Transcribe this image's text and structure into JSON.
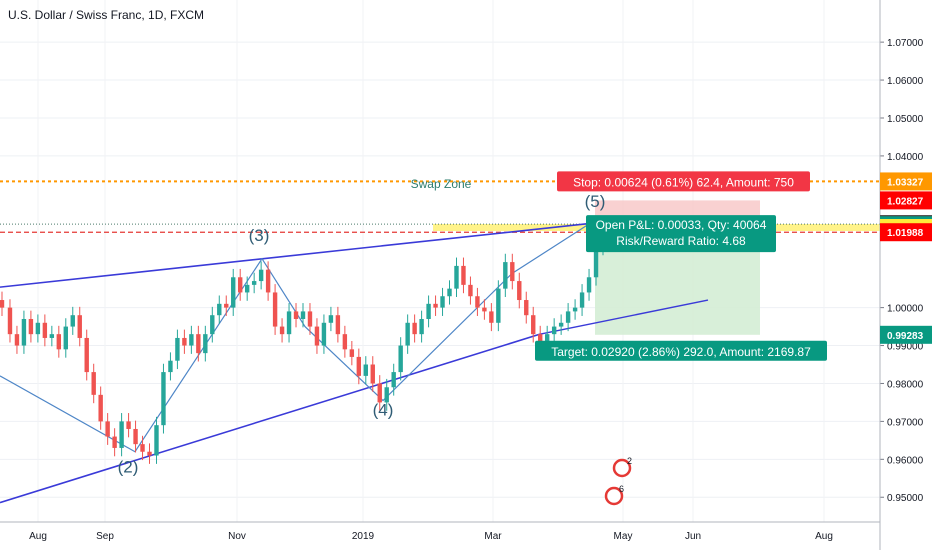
{
  "chart_data": {
    "type": "candlestick",
    "title": "U.S. Dollar / Swiss Franc, 1D, FXCM",
    "x_ticks": [
      "Aug",
      "Sep",
      "Nov",
      "2019",
      "Mar",
      "May",
      "Jun",
      "Aug"
    ],
    "y_ticks": [
      "1.07000",
      "1.06000",
      "1.05000",
      "1.04000",
      "1.00000",
      "0.99000",
      "0.98000",
      "0.97000",
      "0.96000",
      "0.95000"
    ],
    "ylim": [
      0.944,
      1.079
    ],
    "price_badges": [
      {
        "value": "1.03327",
        "color": "#ff9800"
      },
      {
        "value": "1.02827",
        "color": "#ff0000"
      },
      {
        "value": "1.02203",
        "color": "#4a4a4a"
      },
      {
        "value": "1.02170",
        "color": "#089981"
      },
      {
        "value": "1.02099",
        "color": "#ffeb3b"
      },
      {
        "value": "1.01988",
        "color": "#ff0000"
      },
      {
        "value": "0.99283",
        "color": "#089981"
      }
    ],
    "position": {
      "entry": 1.02203,
      "stop": 1.02827,
      "target": 0.99283,
      "stop_label": "Stop: 0.00624 (0.61%) 62.4, Amount: 750",
      "target_label": "Target: 0.02920 (2.86%) 292.0, Amount: 2169.87",
      "pnl_label": "Open P&L: 0.00033, Qty: 40064",
      "rr_label": "Risk/Reward Ratio: 4.68"
    },
    "zone_label": "Swap Zone",
    "wave_labels": [
      "(2)",
      "(3)",
      "(4)",
      "(5)"
    ],
    "event_counts": [
      "2",
      "6"
    ],
    "colors": {
      "up": "#26a69a",
      "down": "#ef5350",
      "trend": "#3a3ad8",
      "wave": "#4e86c7"
    },
    "series": [
      {
        "t": 0,
        "close": 1.0
      },
      {
        "t": 8,
        "close": 0.993
      },
      {
        "t": 15,
        "close": 0.99
      },
      {
        "t": 22,
        "close": 0.997
      },
      {
        "t": 29,
        "close": 0.993
      },
      {
        "t": 36,
        "close": 0.996
      },
      {
        "t": 43,
        "close": 0.992
      },
      {
        "t": 50,
        "close": 0.993
      },
      {
        "t": 57,
        "close": 0.989
      },
      {
        "t": 64,
        "close": 0.995
      },
      {
        "t": 71,
        "close": 0.998
      },
      {
        "t": 78,
        "close": 0.992
      },
      {
        "t": 85,
        "close": 0.983
      },
      {
        "t": 92,
        "close": 0.977
      },
      {
        "t": 99,
        "close": 0.97
      },
      {
        "t": 106,
        "close": 0.966
      },
      {
        "t": 113,
        "close": 0.963
      },
      {
        "t": 120,
        "close": 0.97
      },
      {
        "t": 127,
        "close": 0.968
      },
      {
        "t": 134,
        "close": 0.964
      },
      {
        "t": 141,
        "close": 0.962
      },
      {
        "t": 148,
        "close": 0.961
      },
      {
        "t": 155,
        "close": 0.969
      },
      {
        "t": 162,
        "close": 0.983
      },
      {
        "t": 169,
        "close": 0.986
      },
      {
        "t": 176,
        "close": 0.992
      },
      {
        "t": 183,
        "close": 0.99
      },
      {
        "t": 190,
        "close": 0.993
      },
      {
        "t": 197,
        "close": 0.988
      },
      {
        "t": 204,
        "close": 0.993
      },
      {
        "t": 211,
        "close": 0.998
      },
      {
        "t": 218,
        "close": 1.001
      },
      {
        "t": 225,
        "close": 1.0
      },
      {
        "t": 232,
        "close": 1.008
      },
      {
        "t": 239,
        "close": 1.004
      },
      {
        "t": 246,
        "close": 1.006
      },
      {
        "t": 253,
        "close": 1.007
      },
      {
        "t": 260,
        "close": 1.01
      },
      {
        "t": 267,
        "close": 1.004
      },
      {
        "t": 274,
        "close": 0.995
      },
      {
        "t": 281,
        "close": 0.993
      },
      {
        "t": 288,
        "close": 0.999
      },
      {
        "t": 295,
        "close": 0.997
      },
      {
        "t": 302,
        "close": 0.999
      },
      {
        "t": 309,
        "close": 0.995
      },
      {
        "t": 316,
        "close": 0.99
      },
      {
        "t": 323,
        "close": 0.996
      },
      {
        "t": 330,
        "close": 0.998
      },
      {
        "t": 337,
        "close": 0.993
      },
      {
        "t": 344,
        "close": 0.989
      },
      {
        "t": 351,
        "close": 0.987
      },
      {
        "t": 358,
        "close": 0.982
      },
      {
        "t": 365,
        "close": 0.985
      },
      {
        "t": 372,
        "close": 0.98
      },
      {
        "t": 379,
        "close": 0.975
      },
      {
        "t": 386,
        "close": 0.979
      },
      {
        "t": 393,
        "close": 0.983
      },
      {
        "t": 400,
        "close": 0.99
      },
      {
        "t": 407,
        "close": 0.996
      },
      {
        "t": 414,
        "close": 0.993
      },
      {
        "t": 421,
        "close": 0.997
      },
      {
        "t": 428,
        "close": 1.001
      },
      {
        "t": 435,
        "close": 1.0
      },
      {
        "t": 442,
        "close": 1.003
      },
      {
        "t": 449,
        "close": 1.005
      },
      {
        "t": 456,
        "close": 1.011
      },
      {
        "t": 463,
        "close": 1.006
      },
      {
        "t": 470,
        "close": 1.003
      },
      {
        "t": 477,
        "close": 1.0
      },
      {
        "t": 484,
        "close": 0.999
      },
      {
        "t": 491,
        "close": 0.996
      },
      {
        "t": 498,
        "close": 1.005
      },
      {
        "t": 505,
        "close": 1.012
      },
      {
        "t": 512,
        "close": 1.007
      },
      {
        "t": 519,
        "close": 1.002
      },
      {
        "t": 526,
        "close": 0.998
      },
      {
        "t": 533,
        "close": 0.993
      },
      {
        "t": 540,
        "close": 0.99
      },
      {
        "t": 547,
        "close": 0.993
      },
      {
        "t": 554,
        "close": 0.995
      },
      {
        "t": 561,
        "close": 0.996
      },
      {
        "t": 568,
        "close": 0.999
      },
      {
        "t": 575,
        "close": 1.0
      },
      {
        "t": 582,
        "close": 1.004
      },
      {
        "t": 589,
        "close": 1.008
      },
      {
        "t": 596,
        "close": 1.016
      },
      {
        "t": 603,
        "close": 1.02
      }
    ]
  }
}
